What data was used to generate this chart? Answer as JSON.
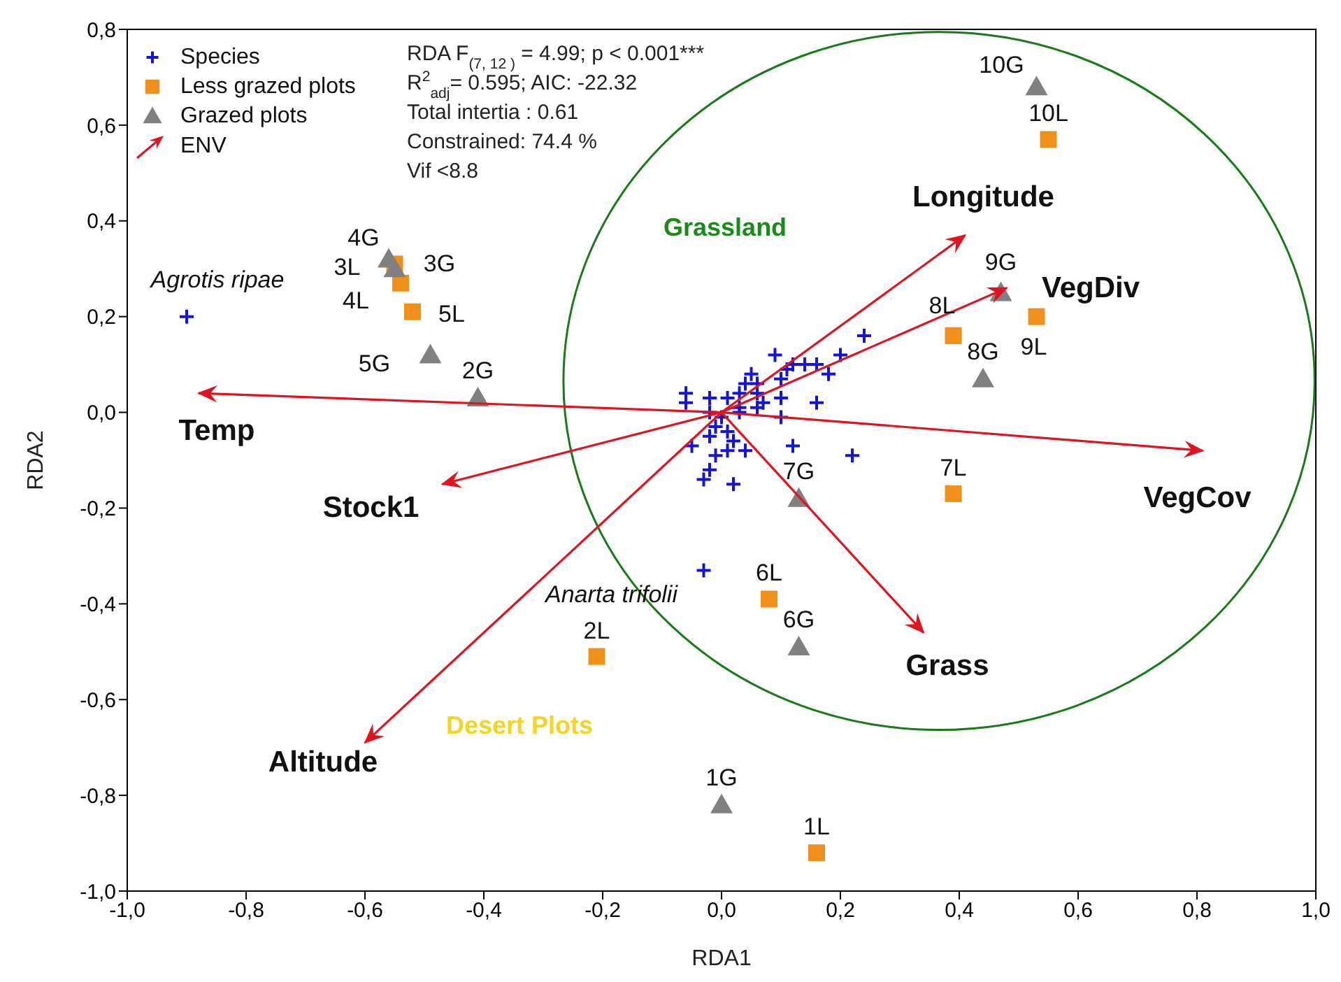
{
  "chart_data": {
    "type": "scatter",
    "xlabel": "RDA1",
    "ylabel": "RDA2",
    "xlim": [
      -1,
      1
    ],
    "ylim": [
      -1,
      0.8
    ],
    "xticks": [
      {
        "value": -1,
        "label": "-1,0"
      },
      {
        "value": -0.8,
        "label": "-0,8"
      },
      {
        "value": -0.6,
        "label": "-0,6"
      },
      {
        "value": -0.4,
        "label": "-0,4"
      },
      {
        "value": -0.2,
        "label": "-0,2"
      },
      {
        "value": 0,
        "label": "0,0"
      },
      {
        "value": 0.2,
        "label": "0,2"
      },
      {
        "value": 0.4,
        "label": "0,4"
      },
      {
        "value": 0.6,
        "label": "0,6"
      },
      {
        "value": 0.8,
        "label": "0,8"
      },
      {
        "value": 1,
        "label": "1,0"
      }
    ],
    "yticks": [
      {
        "value": -1,
        "label": "-1,0"
      },
      {
        "value": -0.8,
        "label": "-0,8"
      },
      {
        "value": -0.6,
        "label": "-0,6"
      },
      {
        "value": -0.4,
        "label": "-0,4"
      },
      {
        "value": -0.2,
        "label": "-0,2"
      },
      {
        "value": 0,
        "label": "0,0"
      },
      {
        "value": 0.2,
        "label": "0,2"
      },
      {
        "value": 0.4,
        "label": "0,4"
      },
      {
        "value": 0.6,
        "label": "0,6"
      },
      {
        "value": 0.8,
        "label": "0,8"
      }
    ],
    "legend": "top left",
    "series": [
      {
        "name": "Species",
        "marker": "cross",
        "color": "#1414d8",
        "x": [
          -0.9,
          -0.03,
          0.24,
          0.2,
          0.09,
          0.12,
          0.14,
          0.16,
          0.18,
          0.11,
          0.1,
          0.05,
          0.16,
          -0.06,
          -0.06,
          -0.02,
          0.01,
          0.03,
          0.06,
          0.07,
          0.1,
          0.1,
          0.06,
          0.03,
          0.0,
          -0.01,
          0.01,
          0.02,
          -0.02,
          -0.05,
          -0.01,
          0.01,
          0.04,
          0.12,
          0.22,
          -0.02,
          -0.03,
          0.02,
          -0.02,
          0.03,
          0.06,
          0.04
        ],
        "values": [
          0.2,
          -0.33,
          0.16,
          0.12,
          0.12,
          0.1,
          0.1,
          0.1,
          0.08,
          0.09,
          0.07,
          0.08,
          0.02,
          0.04,
          0.02,
          0.03,
          0.03,
          0.04,
          0.06,
          0.02,
          0.03,
          -0.01,
          0.01,
          0.0,
          -0.01,
          -0.03,
          -0.04,
          -0.06,
          -0.05,
          -0.07,
          -0.09,
          -0.08,
          -0.08,
          -0.07,
          -0.09,
          -0.12,
          -0.14,
          -0.15,
          0.0,
          0.01,
          0.04,
          0.06
        ]
      },
      {
        "name": "Less grazed plots",
        "marker": "square",
        "color": "#f0901a",
        "x": [
          0.16,
          -0.21,
          -0.55,
          -0.54,
          -0.52,
          0.08,
          0.39,
          0.39,
          0.53,
          0.55
        ],
        "values": [
          -0.92,
          -0.51,
          0.31,
          0.27,
          0.21,
          -0.39,
          -0.17,
          0.16,
          0.2,
          0.57
        ]
      },
      {
        "name": "Grazed plots",
        "marker": "triangle",
        "color": "#808080",
        "x": [
          0.0,
          -0.41,
          -0.55,
          -0.56,
          -0.49,
          0.13,
          0.13,
          0.44,
          0.47,
          0.53
        ],
        "values": [
          -0.82,
          0.03,
          0.3,
          0.32,
          0.12,
          -0.49,
          -0.18,
          0.07,
          0.25,
          0.68
        ]
      },
      {
        "name": "Temp",
        "type": "line",
        "marker": "none",
        "color": "#e01420",
        "x": [
          0,
          -0.88
        ],
        "values": [
          0,
          0.04
        ]
      },
      {
        "name": "Stock1",
        "type": "line",
        "marker": "none",
        "color": "#e01420",
        "x": [
          0,
          -0.47
        ],
        "values": [
          0,
          -0.15
        ]
      },
      {
        "name": "Altitude",
        "type": "line",
        "marker": "none",
        "color": "#e01420",
        "x": [
          0,
          -0.6
        ],
        "values": [
          0,
          -0.69
        ]
      },
      {
        "name": "Grass",
        "type": "line",
        "marker": "none",
        "color": "#e01420",
        "x": [
          0,
          0.34
        ],
        "values": [
          0,
          -0.46
        ]
      },
      {
        "name": "VegCov",
        "type": "line",
        "marker": "none",
        "color": "#e01420",
        "x": [
          0,
          0.81
        ],
        "values": [
          0,
          -0.08
        ]
      },
      {
        "name": "VegDiv",
        "type": "line",
        "marker": "none",
        "color": "#e01420",
        "x": [
          0,
          0.48
        ],
        "values": [
          0,
          0.26
        ]
      },
      {
        "name": "Longitude",
        "type": "line",
        "marker": "none",
        "color": "#e01420",
        "x": [
          0,
          0.41
        ],
        "values": [
          0,
          0.37
        ]
      }
    ],
    "annotations": [
      "RDA F$_{(7, 12 )}$ = 4.99; p <  0.001***",
      "R$^{2}$$_{adj}$= 0.595; AIC: -22.32",
      "Total intertia : 0.61",
      "Constrained: 74.4 %",
      "Vif <8.8",
      "Grassland",
      "Desert Plots",
      "ENV",
      {
        "text": "Agrotis ripae",
        "x": -0.9,
        "y": 0.2
      },
      {
        "text": "Anarta trifolii",
        "x": -0.03,
        "y": -0.33
      },
      {
        "text": "1L",
        "x": 0.16,
        "y": -0.92
      },
      {
        "text": "2L",
        "x": -0.21,
        "y": -0.51
      },
      {
        "text": "3L",
        "x": -0.55,
        "y": 0.31
      },
      {
        "text": "4L",
        "x": -0.54,
        "y": 0.27
      },
      {
        "text": "5L",
        "x": -0.52,
        "y": 0.21
      },
      {
        "text": "6L",
        "x": 0.08,
        "y": -0.39
      },
      {
        "text": "7L",
        "x": 0.39,
        "y": -0.17
      },
      {
        "text": "8L",
        "x": 0.39,
        "y": 0.16
      },
      {
        "text": "9L",
        "x": 0.53,
        "y": 0.2
      },
      {
        "text": "10L",
        "x": 0.55,
        "y": 0.57
      },
      {
        "text": "1G",
        "x": 0.0,
        "y": -0.82
      },
      {
        "text": "2G",
        "x": -0.41,
        "y": 0.03
      },
      {
        "text": "3G",
        "x": -0.55,
        "y": 0.3
      },
      {
        "text": "4G",
        "x": -0.56,
        "y": 0.32
      },
      {
        "text": "5G",
        "x": -0.49,
        "y": 0.12
      },
      {
        "text": "6G",
        "x": 0.13,
        "y": -0.49
      },
      {
        "text": "7G",
        "x": 0.13,
        "y": -0.18
      },
      {
        "text": "8G",
        "x": 0.44,
        "y": 0.07
      },
      {
        "text": "9G",
        "x": 0.47,
        "y": 0.25
      },
      {
        "text": "10G",
        "x": 0.53,
        "y": 0.68
      }
    ]
  }
}
